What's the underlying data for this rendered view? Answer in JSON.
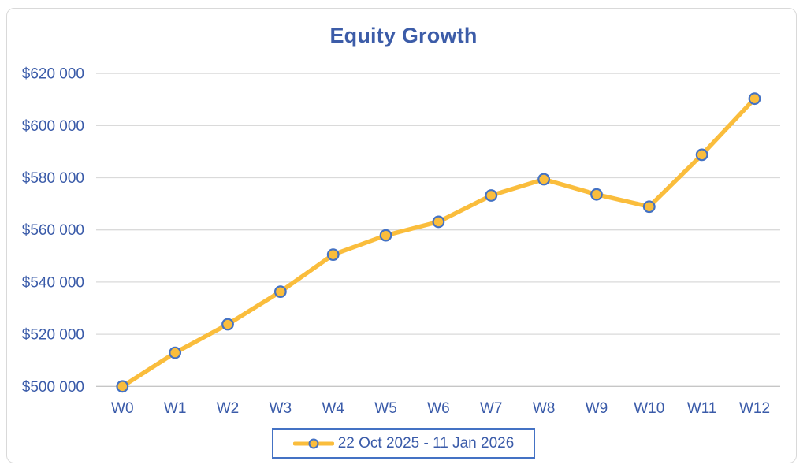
{
  "title": "Equity Growth",
  "legend": {
    "label": "22 Oct 2025 - 11 Jan 2026"
  },
  "colors": {
    "line": "#fabd3c",
    "marker_fill": "#fabd3c",
    "marker_stroke": "#4472c4",
    "text": "#3a5ba9",
    "gridline": "#dadada",
    "axis_line": "#c6c6c6",
    "legend_border": "#4472c4",
    "chart_border": "#d9d9d9"
  },
  "chart_data": {
    "type": "line",
    "title": "Equity Growth",
    "categories": [
      "W0",
      "W1",
      "W2",
      "W3",
      "W4",
      "W5",
      "W6",
      "W7",
      "W8",
      "W9",
      "W10",
      "W11",
      "W12"
    ],
    "series": [
      {
        "name": "22 Oct 2025 - 11 Jan 2026",
        "values": [
          500000,
          512900,
          523800,
          536300,
          550500,
          557900,
          563100,
          573200,
          579400,
          573600,
          568900,
          588800,
          610300
        ]
      }
    ],
    "xlabel": "",
    "ylabel": "",
    "ylim": [
      500000,
      620000
    ],
    "ytick_step": 20000,
    "ytick_labels": [
      "$500 000",
      "$520 000",
      "$540 000",
      "$560 000",
      "$580 000",
      "$600 000",
      "$620 000"
    ],
    "grid": true,
    "legend_position": "bottom"
  }
}
